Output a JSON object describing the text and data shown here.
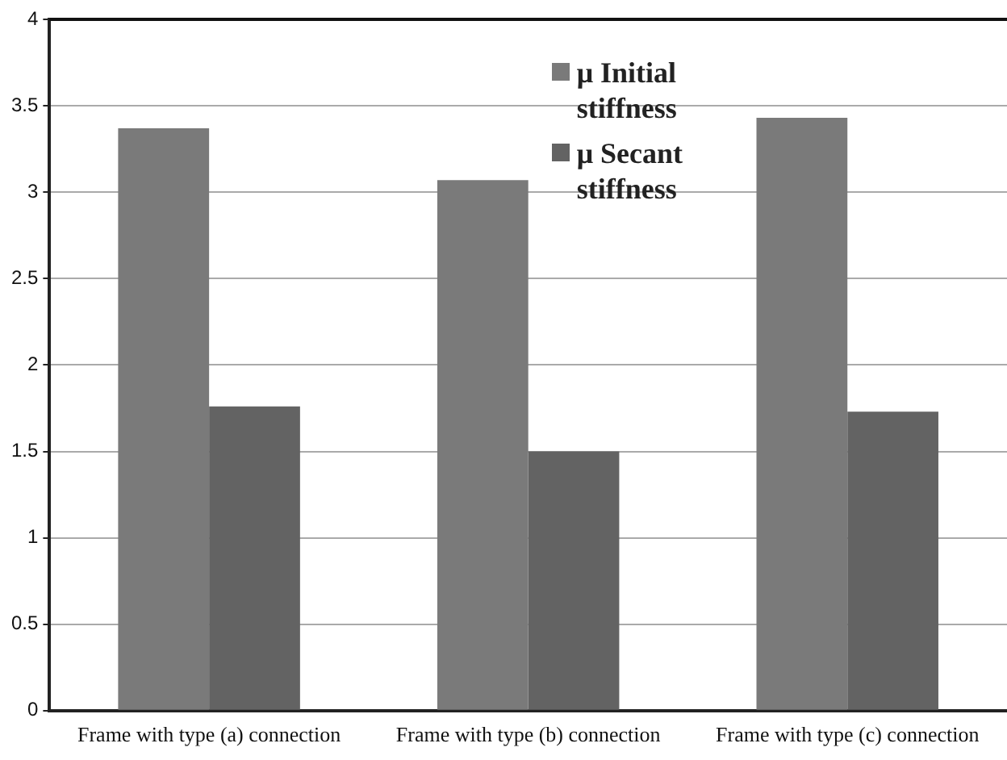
{
  "chart_data": {
    "type": "bar",
    "categories": [
      "Frame with type (a) connection",
      "Frame with type (b) connection",
      "Frame with type (c) connection"
    ],
    "series": [
      {
        "name": "μ Initial stiffness",
        "color": "#7a7a7a",
        "values": [
          3.37,
          3.07,
          3.43
        ]
      },
      {
        "name": "μ Secant stiffness",
        "color": "#636363",
        "values": [
          1.76,
          1.5,
          1.73
        ]
      }
    ],
    "ylim": [
      0,
      4
    ],
    "yticks": [
      0,
      0.5,
      1,
      1.5,
      2,
      2.5,
      3,
      3.5,
      4
    ],
    "grid": "y",
    "legend": "top"
  }
}
